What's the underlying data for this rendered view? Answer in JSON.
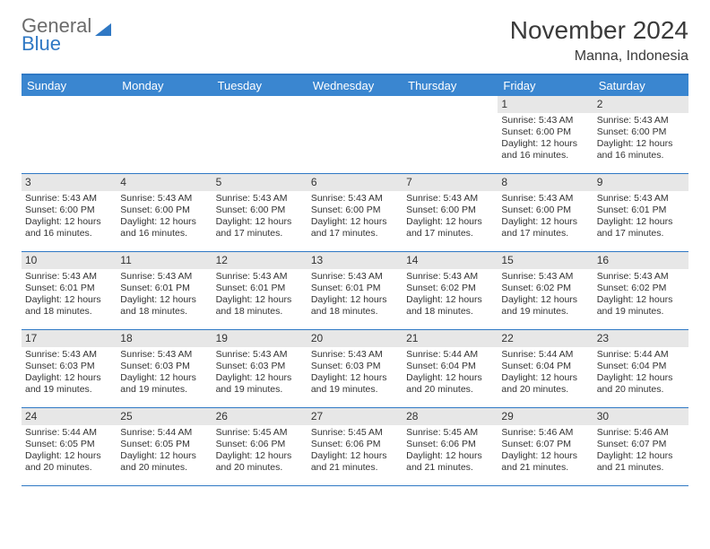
{
  "logo": {
    "line1": "General",
    "line2": "Blue",
    "line2_color": "#2f78c4"
  },
  "title": "November 2024",
  "location": "Manna, Indonesia",
  "colors": {
    "header_bg": "#3a86d0",
    "header_text": "#ffffff",
    "border": "#2f78c4",
    "daynum_bg": "#e7e7e7",
    "text": "#333333",
    "bg": "#ffffff"
  },
  "day_headers": [
    "Sunday",
    "Monday",
    "Tuesday",
    "Wednesday",
    "Thursday",
    "Friday",
    "Saturday"
  ],
  "weeks": [
    [
      null,
      null,
      null,
      null,
      null,
      {
        "n": "1",
        "sr": "5:43 AM",
        "ss": "6:00 PM",
        "dl": "12 hours and 16 minutes."
      },
      {
        "n": "2",
        "sr": "5:43 AM",
        "ss": "6:00 PM",
        "dl": "12 hours and 16 minutes."
      }
    ],
    [
      {
        "n": "3",
        "sr": "5:43 AM",
        "ss": "6:00 PM",
        "dl": "12 hours and 16 minutes."
      },
      {
        "n": "4",
        "sr": "5:43 AM",
        "ss": "6:00 PM",
        "dl": "12 hours and 16 minutes."
      },
      {
        "n": "5",
        "sr": "5:43 AM",
        "ss": "6:00 PM",
        "dl": "12 hours and 17 minutes."
      },
      {
        "n": "6",
        "sr": "5:43 AM",
        "ss": "6:00 PM",
        "dl": "12 hours and 17 minutes."
      },
      {
        "n": "7",
        "sr": "5:43 AM",
        "ss": "6:00 PM",
        "dl": "12 hours and 17 minutes."
      },
      {
        "n": "8",
        "sr": "5:43 AM",
        "ss": "6:00 PM",
        "dl": "12 hours and 17 minutes."
      },
      {
        "n": "9",
        "sr": "5:43 AM",
        "ss": "6:01 PM",
        "dl": "12 hours and 17 minutes."
      }
    ],
    [
      {
        "n": "10",
        "sr": "5:43 AM",
        "ss": "6:01 PM",
        "dl": "12 hours and 18 minutes."
      },
      {
        "n": "11",
        "sr": "5:43 AM",
        "ss": "6:01 PM",
        "dl": "12 hours and 18 minutes."
      },
      {
        "n": "12",
        "sr": "5:43 AM",
        "ss": "6:01 PM",
        "dl": "12 hours and 18 minutes."
      },
      {
        "n": "13",
        "sr": "5:43 AM",
        "ss": "6:01 PM",
        "dl": "12 hours and 18 minutes."
      },
      {
        "n": "14",
        "sr": "5:43 AM",
        "ss": "6:02 PM",
        "dl": "12 hours and 18 minutes."
      },
      {
        "n": "15",
        "sr": "5:43 AM",
        "ss": "6:02 PM",
        "dl": "12 hours and 19 minutes."
      },
      {
        "n": "16",
        "sr": "5:43 AM",
        "ss": "6:02 PM",
        "dl": "12 hours and 19 minutes."
      }
    ],
    [
      {
        "n": "17",
        "sr": "5:43 AM",
        "ss": "6:03 PM",
        "dl": "12 hours and 19 minutes."
      },
      {
        "n": "18",
        "sr": "5:43 AM",
        "ss": "6:03 PM",
        "dl": "12 hours and 19 minutes."
      },
      {
        "n": "19",
        "sr": "5:43 AM",
        "ss": "6:03 PM",
        "dl": "12 hours and 19 minutes."
      },
      {
        "n": "20",
        "sr": "5:43 AM",
        "ss": "6:03 PM",
        "dl": "12 hours and 19 minutes."
      },
      {
        "n": "21",
        "sr": "5:44 AM",
        "ss": "6:04 PM",
        "dl": "12 hours and 20 minutes."
      },
      {
        "n": "22",
        "sr": "5:44 AM",
        "ss": "6:04 PM",
        "dl": "12 hours and 20 minutes."
      },
      {
        "n": "23",
        "sr": "5:44 AM",
        "ss": "6:04 PM",
        "dl": "12 hours and 20 minutes."
      }
    ],
    [
      {
        "n": "24",
        "sr": "5:44 AM",
        "ss": "6:05 PM",
        "dl": "12 hours and 20 minutes."
      },
      {
        "n": "25",
        "sr": "5:44 AM",
        "ss": "6:05 PM",
        "dl": "12 hours and 20 minutes."
      },
      {
        "n": "26",
        "sr": "5:45 AM",
        "ss": "6:06 PM",
        "dl": "12 hours and 20 minutes."
      },
      {
        "n": "27",
        "sr": "5:45 AM",
        "ss": "6:06 PM",
        "dl": "12 hours and 21 minutes."
      },
      {
        "n": "28",
        "sr": "5:45 AM",
        "ss": "6:06 PM",
        "dl": "12 hours and 21 minutes."
      },
      {
        "n": "29",
        "sr": "5:46 AM",
        "ss": "6:07 PM",
        "dl": "12 hours and 21 minutes."
      },
      {
        "n": "30",
        "sr": "5:46 AM",
        "ss": "6:07 PM",
        "dl": "12 hours and 21 minutes."
      }
    ]
  ],
  "labels": {
    "sunrise_prefix": "Sunrise: ",
    "sunset_prefix": "Sunset: ",
    "daylight_prefix": "Daylight: "
  }
}
